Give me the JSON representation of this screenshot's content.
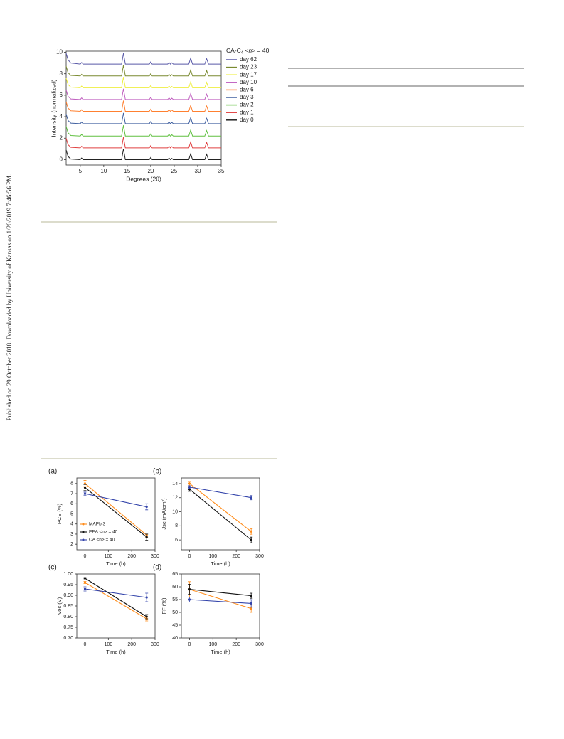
{
  "sidebar": "Published on 29 October 2018. Downloaded by University of Kansas on 1/20/2019 7:46:56 PM.",
  "chart_data": [
    {
      "type": "line",
      "xlabel": "Degrees (2θ)",
      "ylabel": "Intensity (normalized)",
      "legend_title": [
        "CA-C",
        "4",
        " <",
        "n",
        "> = 40"
      ],
      "xlim": [
        2,
        35
      ],
      "ylim": [
        -0.5,
        10.1
      ],
      "xticks": [
        5,
        10,
        15,
        20,
        25,
        30,
        35
      ],
      "yticks": [
        0,
        2,
        4,
        6,
        8,
        10
      ],
      "x": [
        2,
        2.4,
        3,
        5.0,
        5.3,
        5.6,
        13.8,
        14.2,
        14.6,
        19.7,
        20.0,
        20.3,
        23.6,
        23.9,
        24.2,
        24.5,
        24.8,
        28.1,
        28.5,
        28.9,
        31.5,
        31.9,
        32.3,
        35
      ],
      "series": [
        {
          "name": "day 62",
          "color": "#5a5aa8",
          "values": [
            9.9,
            9.3,
            9.0,
            8.9,
            9.05,
            8.9,
            8.9,
            9.9,
            8.9,
            8.9,
            9.1,
            8.9,
            8.9,
            9.05,
            8.9,
            9.02,
            8.9,
            8.9,
            9.45,
            8.9,
            8.9,
            9.4,
            8.9,
            8.9
          ]
        },
        {
          "name": "day 23",
          "color": "#7a8a30",
          "values": [
            8.7,
            8.1,
            7.85,
            7.8,
            7.95,
            7.8,
            7.8,
            8.8,
            7.8,
            7.8,
            8.0,
            7.8,
            7.8,
            7.95,
            7.8,
            7.92,
            7.8,
            7.8,
            8.35,
            7.8,
            7.8,
            8.3,
            7.8,
            7.8
          ]
        },
        {
          "name": "day 17",
          "color": "#eeee40",
          "values": [
            7.6,
            7.0,
            6.75,
            6.7,
            6.85,
            6.7,
            6.7,
            7.7,
            6.7,
            6.7,
            6.9,
            6.7,
            6.7,
            6.85,
            6.7,
            6.82,
            6.7,
            6.7,
            7.25,
            6.7,
            6.7,
            7.2,
            6.7,
            6.7
          ]
        },
        {
          "name": "day 10",
          "color": "#c060c0",
          "values": [
            6.5,
            5.9,
            5.65,
            5.6,
            5.75,
            5.6,
            5.6,
            6.6,
            5.6,
            5.6,
            5.8,
            5.6,
            5.6,
            5.75,
            5.6,
            5.72,
            5.6,
            5.6,
            6.15,
            5.6,
            5.6,
            6.1,
            5.6,
            5.6
          ]
        },
        {
          "name": "day 6",
          "color": "#ff8030",
          "values": [
            5.4,
            4.8,
            4.55,
            4.5,
            4.65,
            4.5,
            4.5,
            5.5,
            4.5,
            4.5,
            4.7,
            4.5,
            4.5,
            4.65,
            4.5,
            4.62,
            4.5,
            4.5,
            5.05,
            4.5,
            4.5,
            5.0,
            4.5,
            4.5
          ]
        },
        {
          "name": "day 3",
          "color": "#4060a0",
          "values": [
            4.25,
            3.65,
            3.4,
            3.35,
            3.5,
            3.35,
            3.35,
            4.35,
            3.35,
            3.35,
            3.55,
            3.35,
            3.35,
            3.5,
            3.35,
            3.47,
            3.35,
            3.35,
            3.9,
            3.35,
            3.35,
            3.85,
            3.35,
            3.35
          ]
        },
        {
          "name": "day 2",
          "color": "#60c040",
          "values": [
            3.1,
            2.5,
            2.25,
            2.2,
            2.35,
            2.2,
            2.2,
            3.2,
            2.2,
            2.2,
            2.4,
            2.2,
            2.2,
            2.35,
            2.2,
            2.32,
            2.2,
            2.2,
            2.75,
            2.2,
            2.2,
            2.7,
            2.2,
            2.2
          ]
        },
        {
          "name": "day 1",
          "color": "#e04040",
          "values": [
            2.0,
            1.4,
            1.15,
            1.1,
            1.25,
            1.1,
            1.1,
            2.1,
            1.1,
            1.1,
            1.3,
            1.1,
            1.1,
            1.25,
            1.1,
            1.22,
            1.1,
            1.1,
            1.65,
            1.1,
            1.1,
            1.6,
            1.1,
            1.1
          ]
        },
        {
          "name": "day 0",
          "color": "#222222",
          "values": [
            0.9,
            0.3,
            0.05,
            0,
            0.15,
            0,
            0,
            1.0,
            0,
            0,
            0.2,
            0,
            0,
            0.15,
            0,
            0.12,
            0,
            0,
            0.55,
            0,
            0,
            0.5,
            0,
            0
          ]
        }
      ]
    },
    {
      "type": "errorline",
      "panel_label": "(a)",
      "xlabel": "Time (h)",
      "ylabel": "PCE (%)",
      "legend": "lower left",
      "xlim": [
        -35,
        300
      ],
      "ylim": [
        1.45,
        8.55
      ],
      "xticks": [
        0,
        100,
        200,
        300
      ],
      "yticks": [
        2,
        3,
        4,
        5,
        6,
        7,
        8
      ],
      "series": [
        {
          "name": "MAPbI3",
          "color": "#ff8c1a",
          "x": [
            0,
            264
          ],
          "values": [
            8.0,
            2.9
          ],
          "errors": [
            0.3,
            0.2
          ]
        },
        {
          "name": "PEA <n> = 40",
          "color": "#111111",
          "x": [
            0,
            264
          ],
          "values": [
            7.6,
            2.7
          ],
          "errors": [
            0.3,
            0.3
          ]
        },
        {
          "name": "CA <n> = 40",
          "color": "#3344aa",
          "x": [
            0,
            264
          ],
          "values": [
            7.0,
            5.7
          ],
          "errors": [
            0.15,
            0.3
          ]
        }
      ]
    },
    {
      "type": "errorline",
      "panel_label": "(b)",
      "xlabel": "Time (h)",
      "ylabel": "Jsc (mA/cm²)",
      "xlim": [
        -35,
        300
      ],
      "ylim": [
        4.6,
        14.8
      ],
      "xticks": [
        0,
        100,
        200,
        300
      ],
      "yticks": [
        6,
        8,
        10,
        12,
        14
      ],
      "series": [
        {
          "color": "#ff8c1a",
          "x": [
            0,
            264
          ],
          "values": [
            14.0,
            7.2
          ],
          "errors": [
            0.3,
            0.4
          ]
        },
        {
          "color": "#111111",
          "x": [
            0,
            264
          ],
          "values": [
            13.2,
            6.0
          ],
          "errors": [
            0.3,
            0.4
          ]
        },
        {
          "color": "#3344aa",
          "x": [
            0,
            264
          ],
          "values": [
            13.5,
            12.0
          ],
          "errors": [
            0.2,
            0.3
          ]
        }
      ]
    },
    {
      "type": "errorline",
      "panel_label": "(c)",
      "xlabel": "Time (h)",
      "ylabel": "Voc (V)",
      "xlim": [
        -35,
        300
      ],
      "ylim": [
        0.7,
        1.0
      ],
      "xticks": [
        0,
        100,
        200,
        300
      ],
      "yticks": [
        {
          "value": 0.7,
          "label": "0.70"
        },
        0.75,
        {
          "value": 0.8,
          "label": "0.80"
        },
        0.85,
        {
          "value": 0.9,
          "label": "0.90"
        },
        0.95,
        {
          "value": 1,
          "label": "1.00"
        }
      ],
      "series": [
        {
          "color": "#ff8c1a",
          "x": [
            0,
            264
          ],
          "values": [
            0.96,
            0.79
          ],
          "errors": [
            0.005,
            0.01
          ]
        },
        {
          "color": "#111111",
          "x": [
            0,
            264
          ],
          "values": [
            0.98,
            0.8
          ],
          "errors": [
            0.003,
            0.01
          ]
        },
        {
          "color": "#3344aa",
          "x": [
            0,
            264
          ],
          "values": [
            0.93,
            0.89
          ],
          "errors": [
            0.01,
            0.02
          ]
        }
      ]
    },
    {
      "type": "errorline",
      "panel_label": "(d)",
      "xlabel": "Time (h)",
      "ylabel": "FF (%)",
      "xlim": [
        -35,
        300
      ],
      "ylim": [
        40,
        65
      ],
      "xticks": [
        0,
        100,
        200,
        300
      ],
      "yticks": [
        40,
        45,
        50,
        55,
        60,
        65
      ],
      "series": [
        {
          "color": "#ff8c1a",
          "x": [
            0,
            264
          ],
          "values": [
            59,
            51.5
          ],
          "errors": [
            3,
            1.5
          ]
        },
        {
          "color": "#111111",
          "x": [
            0,
            264
          ],
          "values": [
            59,
            56.5
          ],
          "errors": [
            2,
            1
          ]
        },
        {
          "color": "#3344aa",
          "x": [
            0,
            264
          ],
          "values": [
            55,
            53.5
          ],
          "errors": [
            1,
            1.5
          ]
        }
      ]
    }
  ]
}
